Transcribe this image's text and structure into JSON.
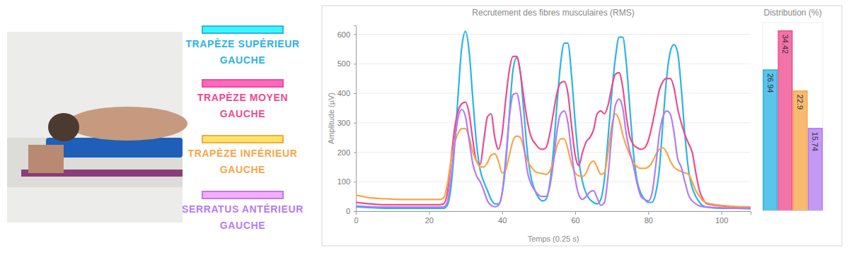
{
  "chart_data": [
    {
      "type": "line",
      "title": "Recrutement des fibres musculaires (RMS)",
      "x_label": "Temps (0.25 s)",
      "y_label": "Amplitude (µV)",
      "x": [
        0,
        4,
        8,
        12,
        16,
        20,
        23,
        24,
        25,
        26,
        27,
        28,
        29,
        30,
        31,
        32,
        33,
        34,
        35,
        36,
        37,
        38,
        39,
        40,
        41,
        42,
        43,
        44,
        45,
        46,
        47,
        48,
        49,
        50,
        51,
        52,
        53,
        54,
        55,
        56,
        57,
        58,
        59,
        60,
        61,
        62,
        63,
        64,
        65,
        66,
        67,
        68,
        69,
        70,
        71,
        72,
        73,
        74,
        75,
        76,
        77,
        78,
        79,
        80,
        81,
        82,
        83,
        84,
        85,
        86,
        87,
        88,
        89,
        90,
        91,
        92,
        93,
        94,
        95,
        96,
        100,
        104,
        108
      ],
      "xlim": [
        0,
        108
      ],
      "xticks": [
        0,
        20,
        40,
        60,
        80,
        100
      ],
      "ylim": [
        0,
        630
      ],
      "yticks": [
        0,
        100,
        200,
        300,
        400,
        500,
        600
      ],
      "grid": "y",
      "legend": "left",
      "series": [
        {
          "name": "TRAPÈZE SUPÉRIEUR GAUCHE",
          "color": "#2cb3e6",
          "values": [
            15,
            12,
            10,
            10,
            10,
            10,
            10,
            10,
            20,
            80,
            220,
            400,
            560,
            610,
            540,
            380,
            230,
            140,
            100,
            70,
            40,
            25,
            25,
            60,
            160,
            330,
            480,
            520,
            470,
            330,
            190,
            110,
            70,
            45,
            35,
            40,
            90,
            200,
            360,
            500,
            570,
            570,
            460,
            300,
            170,
            100,
            60,
            40,
            30,
            25,
            40,
            110,
            250,
            400,
            520,
            590,
            590,
            500,
            340,
            190,
            100,
            60,
            40,
            30,
            30,
            60,
            140,
            300,
            450,
            540,
            565,
            540,
            420,
            260,
            140,
            80,
            50,
            30,
            18,
            14,
            10,
            10,
            8
          ]
        },
        {
          "name": "TRAPÈZE MOYEN GAUCHE",
          "color": "#ee4b8e",
          "values": [
            30,
            25,
            22,
            22,
            22,
            22,
            22,
            25,
            60,
            170,
            280,
            340,
            365,
            370,
            330,
            240,
            170,
            160,
            240,
            320,
            330,
            250,
            210,
            260,
            380,
            480,
            525,
            525,
            470,
            380,
            300,
            250,
            230,
            215,
            210,
            215,
            260,
            330,
            400,
            435,
            440,
            400,
            290,
            190,
            155,
            200,
            235,
            250,
            275,
            330,
            340,
            330,
            360,
            420,
            465,
            470,
            420,
            320,
            250,
            225,
            215,
            210,
            215,
            240,
            290,
            350,
            410,
            440,
            450,
            450,
            420,
            350,
            300,
            260,
            230,
            200,
            130,
            70,
            40,
            25,
            18,
            14,
            12
          ]
        },
        {
          "name": "TRAPÈZE INFÉRIEUR GAUCHE",
          "color": "#f7a648",
          "values": [
            55,
            45,
            42,
            40,
            40,
            40,
            40,
            45,
            90,
            170,
            230,
            265,
            280,
            280,
            250,
            200,
            170,
            150,
            150,
            165,
            190,
            195,
            170,
            130,
            140,
            190,
            240,
            255,
            250,
            210,
            170,
            150,
            135,
            130,
            128,
            125,
            135,
            170,
            220,
            245,
            245,
            210,
            160,
            130,
            120,
            118,
            130,
            160,
            170,
            150,
            125,
            130,
            200,
            290,
            330,
            310,
            260,
            220,
            190,
            165,
            150,
            145,
            145,
            150,
            165,
            190,
            210,
            215,
            200,
            170,
            150,
            140,
            135,
            130,
            125,
            100,
            70,
            50,
            35,
            28,
            20,
            16,
            15
          ]
        },
        {
          "name": "SERRATUS ANTÉRIEUR GAUCHE",
          "color": "#b47cf2",
          "values": [
            18,
            15,
            14,
            14,
            14,
            14,
            14,
            14,
            30,
            110,
            230,
            320,
            345,
            320,
            240,
            160,
            120,
            100,
            70,
            35,
            20,
            15,
            20,
            60,
            180,
            320,
            395,
            400,
            340,
            220,
            130,
            90,
            70,
            55,
            50,
            50,
            80,
            160,
            270,
            330,
            340,
            300,
            200,
            110,
            55,
            40,
            50,
            65,
            70,
            45,
            20,
            30,
            120,
            260,
            360,
            380,
            350,
            260,
            200,
            150,
            90,
            50,
            40,
            35,
            60,
            150,
            260,
            320,
            340,
            330,
            270,
            180,
            150,
            100,
            55,
            35,
            25,
            18,
            15,
            14,
            12,
            10,
            10
          ]
        }
      ]
    },
    {
      "type": "bar",
      "title": "Distribution (%)",
      "categories": [
        null,
        null,
        null,
        null
      ],
      "values": [
        26.94,
        34.42,
        22.9,
        15.74
      ],
      "colors": [
        "#2cb3e6",
        "#ee4b8e",
        "#f7a648",
        "#b47cf2"
      ],
      "ylim": [
        0,
        36
      ],
      "data_labels": true,
      "tick_labels": false
    }
  ]
}
